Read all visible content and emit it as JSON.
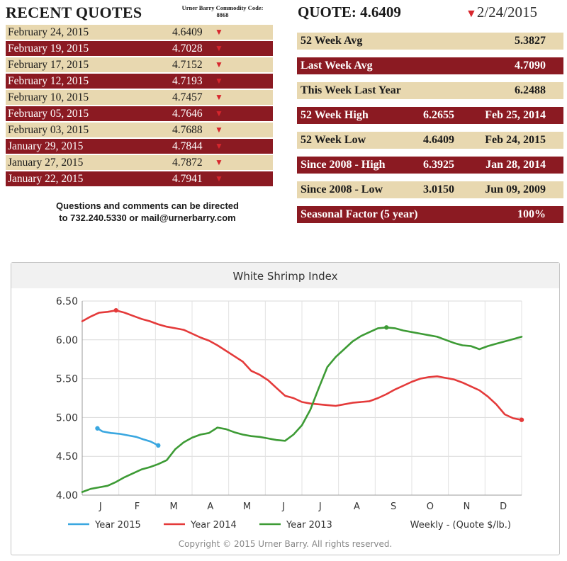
{
  "recent": {
    "title": "RECENT QUOTES",
    "commodity_code_label": "Urner Barry Commodity Code:",
    "commodity_code": "8868",
    "quotes": [
      {
        "date": "February 24, 2015",
        "value": "4.6409",
        "dir": "down"
      },
      {
        "date": "February 19, 2015",
        "value": "4.7028",
        "dir": "down"
      },
      {
        "date": "February 17, 2015",
        "value": "4.7152",
        "dir": "down"
      },
      {
        "date": "February 12, 2015",
        "value": "4.7193",
        "dir": "down"
      },
      {
        "date": "February 10, 2015",
        "value": "4.7457",
        "dir": "down"
      },
      {
        "date": "February 05, 2015",
        "value": "4.7646",
        "dir": "down"
      },
      {
        "date": "February 03, 2015",
        "value": "4.7688",
        "dir": "down"
      },
      {
        "date": "January 29, 2015",
        "value": "4.7844",
        "dir": "down"
      },
      {
        "date": "January 27, 2015",
        "value": "4.7872",
        "dir": "down"
      },
      {
        "date": "January 22, 2015",
        "value": "4.7941",
        "dir": "down"
      }
    ],
    "contact_line1": "Questions and comments can be directed",
    "contact_line2": "to 732.240.5330 or mail@urnerbarry.com"
  },
  "quote": {
    "label": "QUOTE: 4.6409",
    "date": "2/24/2015",
    "stats": [
      {
        "label": "52 Week Avg",
        "value": "5.3827",
        "date": ""
      },
      {
        "label": "Last Week Avg",
        "value": "4.7090",
        "date": ""
      },
      {
        "label": "This Week Last Year",
        "value": "6.2488",
        "date": ""
      },
      {
        "label": "52 Week High",
        "value": "6.2655",
        "date": "Feb 25, 2014"
      },
      {
        "label": "52 Week Low",
        "value": "4.6409",
        "date": "Feb 24, 2015"
      },
      {
        "label": "Since 2008 - High",
        "value": "6.3925",
        "date": "Jan 28, 2014"
      },
      {
        "label": "Since 2008 - Low",
        "value": "3.0150",
        "date": "Jun 09, 2009"
      },
      {
        "label": "Seasonal Factor (5 year)",
        "value": "100%",
        "date": ""
      }
    ]
  },
  "colors": {
    "row_light": "#e8d8b0",
    "row_dark": "#8b1a22",
    "arrow": "#d7262d"
  },
  "chart_data": {
    "type": "line",
    "title": "White Shrimp Index",
    "xlabel": "Weekly - (Quote $/lb.)",
    "ylabel": "",
    "ylim": [
      4.0,
      6.5
    ],
    "yticks": [
      "4.00",
      "4.50",
      "5.00",
      "5.50",
      "6.00",
      "6.50"
    ],
    "xlim": [
      0,
      52
    ],
    "months": [
      "J",
      "F",
      "M",
      "A",
      "M",
      "J",
      "J",
      "A",
      "S",
      "O",
      "N",
      "D"
    ],
    "copyright": "Copyright © 2015 Urner Barry. All rights reserved.",
    "series": [
      {
        "name": "Year 2015",
        "color": "#3aa7e0",
        "x": [
          1.8,
          2.4,
          3.4,
          4.4,
          5.4,
          6.4,
          7.2,
          8.1,
          9.0
        ],
        "y": [
          4.86,
          4.82,
          4.8,
          4.79,
          4.77,
          4.75,
          4.72,
          4.69,
          4.64
        ],
        "markers": [
          0,
          8
        ]
      },
      {
        "name": "Year 2014",
        "color": "#e43a3a",
        "x": [
          0,
          1,
          2,
          3,
          4,
          5,
          6,
          7,
          8,
          9,
          10,
          11,
          12,
          13,
          14,
          15,
          16,
          17,
          18,
          19,
          20,
          21,
          22,
          23,
          24,
          25,
          26,
          27,
          28,
          29,
          30,
          31,
          32,
          33,
          34,
          35,
          36,
          37,
          38,
          39,
          40,
          41,
          42,
          43,
          44,
          45,
          46,
          47,
          48,
          49,
          50,
          51,
          52
        ],
        "y": [
          6.24,
          6.3,
          6.35,
          6.36,
          6.38,
          6.35,
          6.31,
          6.27,
          6.24,
          6.2,
          6.17,
          6.15,
          6.13,
          6.08,
          6.03,
          5.99,
          5.93,
          5.86,
          5.79,
          5.72,
          5.6,
          5.55,
          5.48,
          5.38,
          5.28,
          5.25,
          5.2,
          5.18,
          5.17,
          5.16,
          5.15,
          5.17,
          5.19,
          5.2,
          5.21,
          5.25,
          5.3,
          5.36,
          5.41,
          5.46,
          5.5,
          5.52,
          5.53,
          5.51,
          5.49,
          5.45,
          5.4,
          5.35,
          5.27,
          5.17,
          5.04,
          4.99,
          4.97
        ],
        "markers": [
          4,
          52
        ]
      },
      {
        "name": "Year 2013",
        "color": "#3d9b35",
        "x": [
          0,
          1,
          2,
          3,
          4,
          5,
          6,
          7,
          8,
          9,
          10,
          11,
          12,
          13,
          14,
          15,
          16,
          17,
          18,
          19,
          20,
          21,
          22,
          23,
          24,
          25,
          26,
          27,
          28,
          29,
          30,
          31,
          32,
          33,
          34,
          35,
          36,
          37,
          38,
          39,
          40,
          41,
          42,
          43,
          44,
          45,
          46,
          47,
          48,
          49,
          50,
          51,
          52
        ],
        "y": [
          4.04,
          4.08,
          4.1,
          4.12,
          4.17,
          4.23,
          4.28,
          4.33,
          4.36,
          4.4,
          4.45,
          4.59,
          4.68,
          4.74,
          4.78,
          4.8,
          4.87,
          4.85,
          4.81,
          4.78,
          4.76,
          4.75,
          4.73,
          4.71,
          4.7,
          4.78,
          4.9,
          5.1,
          5.38,
          5.65,
          5.78,
          5.88,
          5.98,
          6.05,
          6.1,
          6.15,
          6.16,
          6.15,
          6.12,
          6.1,
          6.08,
          6.06,
          6.04,
          6.0,
          5.96,
          5.93,
          5.92,
          5.88,
          5.92,
          5.95,
          5.98,
          6.01,
          6.04
        ],
        "markers": [
          36
        ]
      }
    ]
  }
}
